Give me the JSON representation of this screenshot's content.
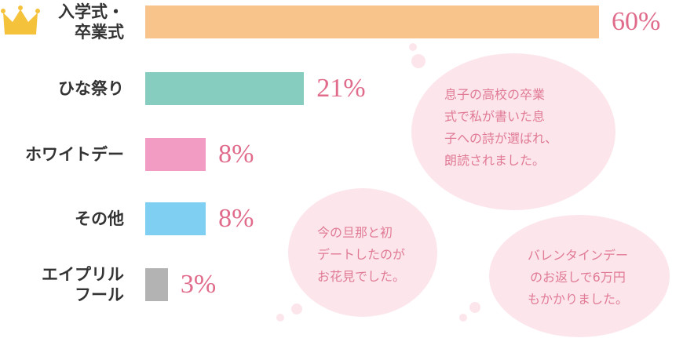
{
  "chart_data": {
    "type": "bar",
    "orientation": "horizontal",
    "categories": [
      "入学式・\n卒業式",
      "ひな祭り",
      "ホワイトデー",
      "その他",
      "エイプリル\nフール"
    ],
    "values": [
      60,
      21,
      8,
      8,
      3
    ],
    "value_labels": [
      "60%",
      "21%",
      "8%",
      "8%",
      "3%"
    ],
    "colors": [
      "#f8c48c",
      "#86cdbf",
      "#f29cc3",
      "#7fcff2",
      "#b3b3b3"
    ],
    "annotations": [
      "息子の高校の卒業\n式で私が書いた息\n子への詩が選ばれ、\n朗読されました。",
      "今の旦那と初\nデートしたのが\nお花見でした。",
      "バレンタインデー\nのお返しで6万円\nもかかりました。"
    ]
  }
}
